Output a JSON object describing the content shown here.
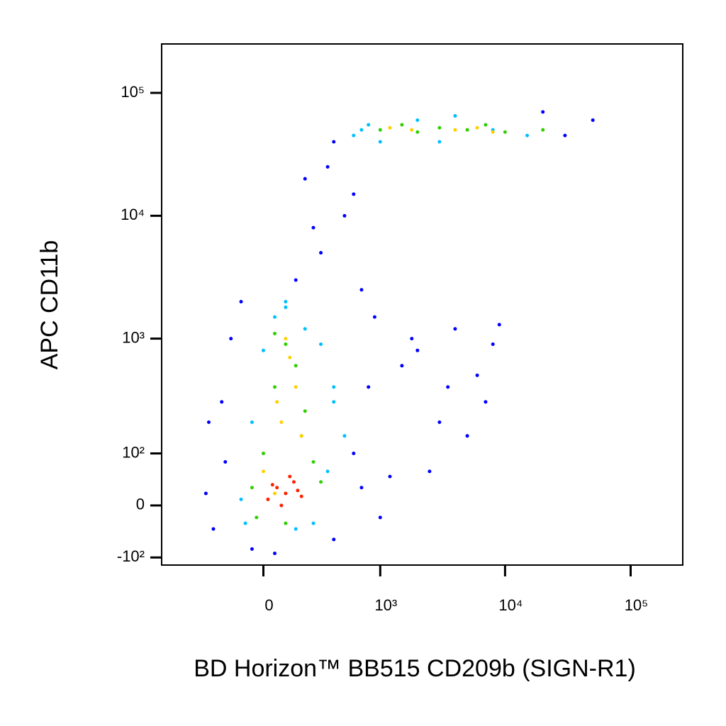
{
  "chart_data": {
    "type": "scatter",
    "x_label": "BD Horizon™ BB515 CD209b (SIGN-R1)",
    "y_label": "APC  CD11b",
    "xscale": "biexponential",
    "yscale": "biexponential",
    "xlim": [
      -750,
      260000
    ],
    "ylim": [
      -120,
      250000
    ],
    "xticks": [
      0,
      {
        "value": 1000,
        "label": "10³"
      },
      {
        "value": 10000,
        "label": "10⁴"
      },
      {
        "value": 100000,
        "label": "10⁵"
      }
    ],
    "yticks": [
      {
        "value": -100,
        "label": "-10²"
      },
      0,
      {
        "value": 100,
        "label": "10²"
      },
      {
        "value": 1000,
        "label": "10³"
      },
      {
        "value": 10000,
        "label": "10⁴"
      },
      {
        "value": 100000,
        "label": "10⁵"
      }
    ],
    "series": [
      {
        "color": "#0000ff",
        "x": [
          -300,
          -200,
          -150,
          -250,
          -100,
          600,
          800,
          1200,
          2000,
          3000,
          5000,
          7000,
          4000,
          1500,
          900,
          2500,
          6000,
          8000,
          -50,
          50,
          400,
          700,
          1000,
          300,
          500,
          200,
          150,
          30000,
          50000,
          20000,
          400,
          350,
          600,
          250,
          -280,
          -180,
          700,
          1800,
          3500,
          9000
        ],
        "values": [
          20,
          300,
          1000,
          -40,
          2000,
          100,
          400,
          50,
          800,
          200,
          150,
          300,
          1200,
          600,
          1500,
          60,
          500,
          900,
          -80,
          -90,
          -60,
          30,
          -20,
          5000,
          10000,
          20000,
          3000,
          45000,
          60000,
          70000,
          40000,
          25000,
          15000,
          8000,
          200,
          80,
          2500,
          1000,
          400,
          1300
        ]
      },
      {
        "color": "#00c0ff",
        "x": [
          -100,
          -50,
          0,
          50,
          100,
          200,
          300,
          400,
          -80,
          150,
          250,
          350,
          600,
          800,
          1000,
          2000,
          4000,
          8000,
          15000,
          700,
          3000,
          400,
          500,
          100
        ],
        "values": [
          10,
          200,
          800,
          1500,
          1800,
          1200,
          900,
          400,
          -30,
          -40,
          -30,
          60,
          45000,
          55000,
          40000,
          60000,
          65000,
          50000,
          45000,
          50000,
          40000,
          300,
          150,
          2000
        ]
      },
      {
        "color": "#30d000",
        "x": [
          -50,
          0,
          50,
          100,
          150,
          200,
          250,
          -30,
          100,
          300,
          1000,
          1500,
          2000,
          3000,
          5000,
          7000,
          10000,
          20000,
          50,
          180
        ],
        "values": [
          30,
          100,
          400,
          900,
          600,
          250,
          80,
          -20,
          -30,
          40,
          50000,
          55000,
          48000,
          52000,
          50000,
          55000,
          48000,
          50000,
          1100,
          150
        ]
      },
      {
        "color": "#ffd000",
        "x": [
          0,
          60,
          120,
          180,
          100,
          50,
          150,
          1200,
          1800,
          4000,
          6000,
          8000,
          80
        ],
        "values": [
          60,
          300,
          700,
          150,
          1000,
          20,
          400,
          52000,
          50000,
          50000,
          52000,
          48000,
          200
        ]
      },
      {
        "color": "#ff2000",
        "x": [
          20,
          60,
          100,
          140,
          180,
          80,
          120,
          40,
          160
        ],
        "values": [
          10,
          30,
          20,
          40,
          15,
          0,
          50,
          35,
          25
        ]
      }
    ]
  }
}
